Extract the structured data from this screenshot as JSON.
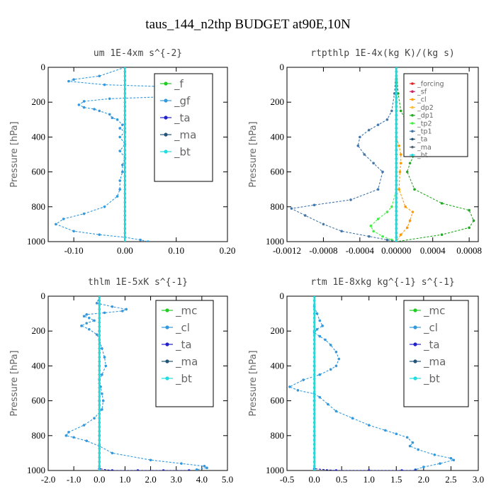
{
  "title": "taus_144_n2thp  BUDGET at90E,10N",
  "chart_data": [
    {
      "type": "line",
      "title": "um  1E-4xm s^{-2}",
      "ylabel": "Pressure [hPa]",
      "xlim": [
        -0.15,
        0.2
      ],
      "ylim": [
        1000,
        0
      ],
      "xticks": [
        -0.1,
        0.0,
        0.1,
        0.2
      ],
      "xtick_labels": [
        "-0.10",
        "0.00",
        "0.10",
        "0.20"
      ],
      "yticks": [
        0,
        200,
        400,
        600,
        800,
        1000
      ],
      "ytick_labels": [
        "0",
        "200",
        "400",
        "600",
        "800",
        "1000"
      ],
      "legend_position": "top-right",
      "legend": [
        "_f",
        "_gf",
        "_ta",
        "_ma",
        "_bt"
      ],
      "series": [
        {
          "name": "_f",
          "color": "#22cc22",
          "x": [
            0.0,
            0.0,
            0.0,
            0.0,
            0.0,
            0.0,
            0.0,
            0.0,
            0.0,
            0.0,
            0.0
          ],
          "y": [
            0,
            100,
            200,
            300,
            400,
            500,
            600,
            700,
            800,
            900,
            1000
          ]
        },
        {
          "name": "_gf",
          "color": "#3399dd",
          "x": [
            0.0,
            -0.05,
            -0.1,
            -0.11,
            -0.04,
            0.07,
            0.12,
            0.16,
            0.14,
            0.07,
            -0.03,
            -0.08,
            -0.09,
            -0.08,
            -0.06,
            -0.05,
            -0.03,
            -0.025,
            -0.015,
            -0.005,
            -0.01,
            0.0,
            -0.01,
            0.0,
            -0.01,
            0.0,
            -0.005,
            -0.005,
            -0.01,
            -0.01,
            -0.015,
            -0.04,
            -0.08,
            -0.12,
            -0.135,
            -0.1,
            -0.05,
            0.0,
            0.03,
            0.045
          ],
          "y": [
            0,
            50,
            70,
            80,
            100,
            110,
            125,
            140,
            160,
            170,
            180,
            195,
            215,
            230,
            240,
            250,
            270,
            290,
            300,
            330,
            350,
            370,
            400,
            440,
            480,
            520,
            560,
            600,
            650,
            700,
            740,
            800,
            840,
            870,
            900,
            940,
            960,
            975,
            990,
            1000
          ]
        },
        {
          "name": "_ta",
          "color": "#2222cc",
          "x": [
            0.0,
            0.0,
            0.0,
            0.0,
            0.0,
            0.0,
            0.0,
            0.0,
            0.0,
            0.0,
            0.0
          ],
          "y": [
            0,
            100,
            200,
            300,
            400,
            500,
            600,
            700,
            800,
            900,
            1000
          ]
        },
        {
          "name": "_ma",
          "color": "#225577",
          "x": [
            0.0,
            0.0,
            0.0,
            0.0,
            0.0,
            0.0,
            0.0,
            0.0,
            0.0,
            0.0,
            0.0
          ],
          "y": [
            0,
            100,
            200,
            300,
            400,
            500,
            600,
            700,
            800,
            900,
            1000
          ]
        },
        {
          "name": "_bt",
          "color": "#22dddd",
          "x": [
            0.0,
            0.0,
            0.0,
            0.0,
            0.0,
            0.0,
            0.0,
            0.0,
            0.0,
            0.0,
            0.0
          ],
          "y": [
            0,
            100,
            200,
            300,
            400,
            500,
            600,
            700,
            800,
            900,
            1000
          ]
        }
      ]
    },
    {
      "type": "line",
      "title": "rtpthlp  1E-4x(kg K)/(kg s)",
      "ylabel": "Pressure [hPa]",
      "xlim": [
        -0.0012,
        0.0009
      ],
      "ylim": [
        1000,
        0
      ],
      "xticks": [
        -0.0012,
        -0.0008,
        -0.0004,
        0.0,
        0.0004,
        0.0008
      ],
      "xtick_labels": [
        "-0.0012",
        "-0.0008",
        "-0.0004",
        "0.00000",
        "0.0004",
        "0.0008"
      ],
      "yticks": [
        0,
        200,
        400,
        600,
        800,
        1000
      ],
      "ytick_labels": [
        "0",
        "200",
        "400",
        "600",
        "800",
        "1000"
      ],
      "legend_position": "top-right",
      "legend": [
        "_forcing",
        "_sf",
        "_cl",
        "_dp2",
        "_dp1",
        "_tp2",
        "_tp1",
        "_ta",
        "_ma",
        "_bt"
      ],
      "series": [
        {
          "name": "_forcing",
          "color": "#dd2222",
          "x": [
            0.0,
            0.0,
            0.0,
            0.0,
            0.0,
            0.0,
            0.0,
            0.0,
            0.0,
            0.0,
            0.0
          ],
          "y": [
            0,
            100,
            200,
            300,
            400,
            500,
            600,
            700,
            800,
            900,
            1000
          ]
        },
        {
          "name": "_sf",
          "color": "#cc2266",
          "x": [
            0.0,
            0.0,
            0.0,
            0.0,
            0.0,
            0.0,
            0.0,
            0.0,
            0.0,
            0.0,
            0.0
          ],
          "y": [
            0,
            100,
            200,
            300,
            400,
            500,
            600,
            700,
            800,
            900,
            1000
          ]
        },
        {
          "name": "_cl",
          "color": "#ff9900",
          "x": [
            0.0,
            0.0,
            0.0,
            0.0,
            3e-05,
            5e-05,
            5e-05,
            4e-05,
            3e-05,
            0.0001,
            0.00018,
            0.00015,
            0.00012,
            5e-05,
            0.0
          ],
          "y": [
            0,
            200,
            300,
            400,
            450,
            500,
            550,
            600,
            700,
            800,
            830,
            880,
            920,
            960,
            1000
          ]
        },
        {
          "name": "_dp2",
          "color": "#ffbb33",
          "x": [
            0.0,
            0.0,
            0.0,
            0.0,
            0.0,
            0.0,
            0.0,
            0.0,
            0.0,
            0.0,
            0.0
          ],
          "y": [
            0,
            100,
            200,
            300,
            400,
            500,
            600,
            700,
            800,
            900,
            1000
          ]
        },
        {
          "name": "_dp1",
          "color": "#22aa22",
          "x": [
            0.0,
            2e-05,
            5e-05,
            0.0001,
            0.00015,
            0.00018,
            0.0002,
            0.0002,
            0.00015,
            0.00012,
            0.0002,
            0.0005,
            0.0008,
            0.00085,
            0.0008,
            0.0005,
            0.0
          ],
          "y": [
            0,
            150,
            250,
            300,
            350,
            400,
            450,
            500,
            550,
            600,
            700,
            780,
            820,
            880,
            920,
            960,
            1000
          ]
        },
        {
          "name": "_tp2",
          "color": "#44ee44",
          "x": [
            0.0,
            0.0,
            0.0,
            0.0,
            -5e-05,
            -0.0001,
            -0.0002,
            -0.00028,
            -0.00025,
            -0.00015,
            -5e-05,
            0.0
          ],
          "y": [
            0,
            200,
            400,
            700,
            800,
            830,
            870,
            910,
            940,
            970,
            990,
            1000
          ]
        },
        {
          "name": "_tp1",
          "color": "#4477aa",
          "x": [
            0.0,
            -2e-05,
            -5e-05,
            -0.0001,
            -0.0002,
            -0.0003,
            -0.0004,
            -0.00042,
            -0.00035,
            -0.00025,
            -0.00015,
            -0.0002,
            -0.0005,
            -0.0009,
            -0.00115,
            -0.001,
            -0.0008,
            -0.0006,
            -0.0003,
            -0.0001,
            0.0
          ],
          "y": [
            0,
            150,
            250,
            300,
            330,
            360,
            400,
            450,
            500,
            550,
            600,
            700,
            760,
            790,
            810,
            850,
            900,
            940,
            970,
            990,
            1000
          ]
        },
        {
          "name": "_ta",
          "color": "#225577",
          "x": [
            0.0,
            0.0,
            0.0,
            0.0,
            0.0,
            0.0,
            0.0,
            0.0,
            0.0,
            0.0,
            0.0
          ],
          "y": [
            0,
            100,
            200,
            300,
            400,
            500,
            600,
            700,
            800,
            900,
            1000
          ]
        },
        {
          "name": "_ma",
          "color": "#556677",
          "x": [
            0.0,
            0.0,
            0.0,
            0.0,
            0.0,
            0.0,
            0.0,
            0.0,
            0.0,
            0.0,
            0.0
          ],
          "y": [
            0,
            100,
            200,
            300,
            400,
            500,
            600,
            700,
            800,
            900,
            1000
          ]
        },
        {
          "name": "_bt",
          "color": "#22dddd",
          "x": [
            0.0,
            0.0,
            0.0,
            0.0,
            0.0,
            0.0,
            0.0,
            0.0,
            0.0,
            0.0,
            0.0
          ],
          "y": [
            0,
            100,
            200,
            300,
            400,
            500,
            600,
            700,
            800,
            900,
            1000
          ]
        }
      ]
    },
    {
      "type": "line",
      "title": "thlm  1E-5xK s^{-1}",
      "ylabel": "Pressure [hPa]",
      "xlim": [
        -2.0,
        5.0
      ],
      "ylim": [
        1000,
        0
      ],
      "xticks": [
        -2.0,
        -1.0,
        0.0,
        1.0,
        2.0,
        3.0,
        4.0,
        5.0
      ],
      "xtick_labels": [
        "-2.0",
        "-1.0",
        "0.0",
        "1.0",
        "2.0",
        "3.0",
        "4.0",
        "5.0"
      ],
      "yticks": [
        0,
        200,
        400,
        600,
        800,
        1000
      ],
      "ytick_labels": [
        "0",
        "200",
        "400",
        "600",
        "800",
        "1000"
      ],
      "legend_position": "top-right",
      "legend": [
        "_mc",
        "_cl",
        "_ta",
        "_ma",
        "_bt"
      ],
      "series": [
        {
          "name": "_mc",
          "color": "#22cc22",
          "x": [
            0.0,
            0.0,
            0.0,
            0.0,
            0.0,
            0.0,
            0.0,
            0.0,
            0.0,
            0.0,
            0.0
          ],
          "y": [
            0,
            100,
            200,
            300,
            400,
            500,
            600,
            700,
            800,
            900,
            1000
          ]
        },
        {
          "name": "_cl",
          "color": "#3399dd",
          "x": [
            0.0,
            -0.1,
            0.5,
            1.05,
            0.9,
            0.2,
            -0.5,
            -0.6,
            -0.4,
            -0.2,
            -0.5,
            -0.7,
            -0.4,
            -0.1,
            0.0,
            0.1,
            0.2,
            0.25,
            0.1,
            0.0,
            0.05,
            0.1,
            0.15,
            0.1,
            -0.2,
            -0.6,
            -1.2,
            -1.3,
            -1.0,
            -0.5,
            0.0,
            0.5,
            2.0,
            3.2,
            4.1,
            4.2,
            3.8
          ],
          "y": [
            0,
            40,
            60,
            75,
            85,
            95,
            105,
            115,
            125,
            140,
            155,
            170,
            190,
            220,
            250,
            300,
            350,
            400,
            450,
            480,
            520,
            560,
            600,
            650,
            700,
            740,
            780,
            800,
            810,
            830,
            860,
            900,
            940,
            960,
            975,
            985,
            995
          ]
        },
        {
          "name": "_ta",
          "color": "#2222cc",
          "x": [
            0.0,
            0.0,
            0.0,
            0.0,
            0.0,
            0.0,
            0.5,
            1.5,
            2.5,
            3.5
          ],
          "y": [
            0,
            200,
            400,
            600,
            800,
            990,
            1000,
            1000,
            1000,
            1000
          ]
        },
        {
          "name": "_ma",
          "color": "#225577",
          "x": [
            0.0,
            0.0,
            0.0,
            0.0,
            0.0,
            0.0,
            0.0,
            0.0,
            0.0,
            0.0,
            0.0
          ],
          "y": [
            0,
            100,
            200,
            300,
            400,
            500,
            600,
            700,
            800,
            900,
            1000
          ]
        },
        {
          "name": "_bt",
          "color": "#22dddd",
          "x": [
            0.0,
            0.0,
            0.0,
            0.0,
            0.0,
            0.0,
            0.0,
            0.0,
            0.0,
            0.0,
            0.0
          ],
          "y": [
            0,
            100,
            200,
            300,
            400,
            500,
            600,
            700,
            800,
            900,
            1000
          ]
        }
      ]
    },
    {
      "type": "line",
      "title": "rtm  1E-8xkg kg^{-1} s^{-1}",
      "ylabel": "Pressure [hPa]",
      "xlim": [
        -0.5,
        3.0
      ],
      "ylim": [
        1000,
        0
      ],
      "xticks": [
        -0.5,
        0.0,
        0.5,
        1.0,
        1.5,
        2.0,
        2.5,
        3.0
      ],
      "xtick_labels": [
        "-0.5",
        "0.0",
        "0.5",
        "1.0",
        "1.5",
        "2.0",
        "2.5",
        "3.0"
      ],
      "yticks": [
        0,
        200,
        400,
        600,
        800,
        1000
      ],
      "ytick_labels": [
        "0",
        "200",
        "400",
        "600",
        "800",
        "1000"
      ],
      "legend_position": "top-right",
      "legend": [
        "_mc",
        "_cl",
        "_ta",
        "_ma",
        "_bt"
      ],
      "series": [
        {
          "name": "_mc",
          "color": "#22cc22",
          "x": [
            0.0,
            0.0,
            0.0,
            0.0,
            0.0,
            0.0,
            0.0,
            0.0,
            0.0,
            0.0,
            0.0
          ],
          "y": [
            0,
            100,
            200,
            300,
            400,
            500,
            600,
            700,
            800,
            900,
            1000
          ]
        },
        {
          "name": "_cl",
          "color": "#3399dd",
          "x": [
            0.0,
            0.0,
            0.05,
            0.1,
            0.15,
            0.05,
            0.0,
            0.1,
            0.2,
            0.3,
            0.4,
            0.45,
            0.4,
            0.3,
            0.1,
            -0.2,
            -0.45,
            -0.3,
            0.0,
            0.1,
            0.25,
            0.4,
            0.7,
            1.0,
            1.3,
            1.5,
            1.7,
            1.8,
            1.75,
            1.9,
            2.2,
            2.5,
            2.55,
            2.3,
            2.0,
            1.85
          ],
          "y": [
            0,
            60,
            100,
            140,
            170,
            190,
            210,
            230,
            250,
            280,
            320,
            360,
            400,
            420,
            450,
            480,
            520,
            540,
            560,
            580,
            620,
            660,
            700,
            740,
            770,
            790,
            810,
            840,
            860,
            880,
            910,
            930,
            940,
            960,
            980,
            995
          ]
        },
        {
          "name": "_ta",
          "color": "#2222cc",
          "x": [
            0.0,
            0.0,
            0.0,
            0.0,
            0.0,
            0.0,
            0.4,
            1.0,
            1.6,
            1.85
          ],
          "y": [
            0,
            200,
            400,
            600,
            800,
            990,
            1000,
            1000,
            1000,
            1000
          ]
        },
        {
          "name": "_ma",
          "color": "#225577",
          "x": [
            0.0,
            0.0,
            0.0,
            0.0,
            0.0,
            0.0,
            0.0,
            0.0,
            0.0,
            0.0,
            0.0
          ],
          "y": [
            0,
            100,
            200,
            300,
            400,
            500,
            600,
            700,
            800,
            900,
            1000
          ]
        },
        {
          "name": "_bt",
          "color": "#22dddd",
          "x": [
            0.0,
            0.0,
            0.0,
            0.0,
            0.0,
            0.0,
            0.0,
            0.0,
            0.0,
            0.0,
            0.0
          ],
          "y": [
            0,
            100,
            200,
            300,
            400,
            500,
            600,
            700,
            800,
            900,
            1000
          ]
        }
      ]
    }
  ]
}
